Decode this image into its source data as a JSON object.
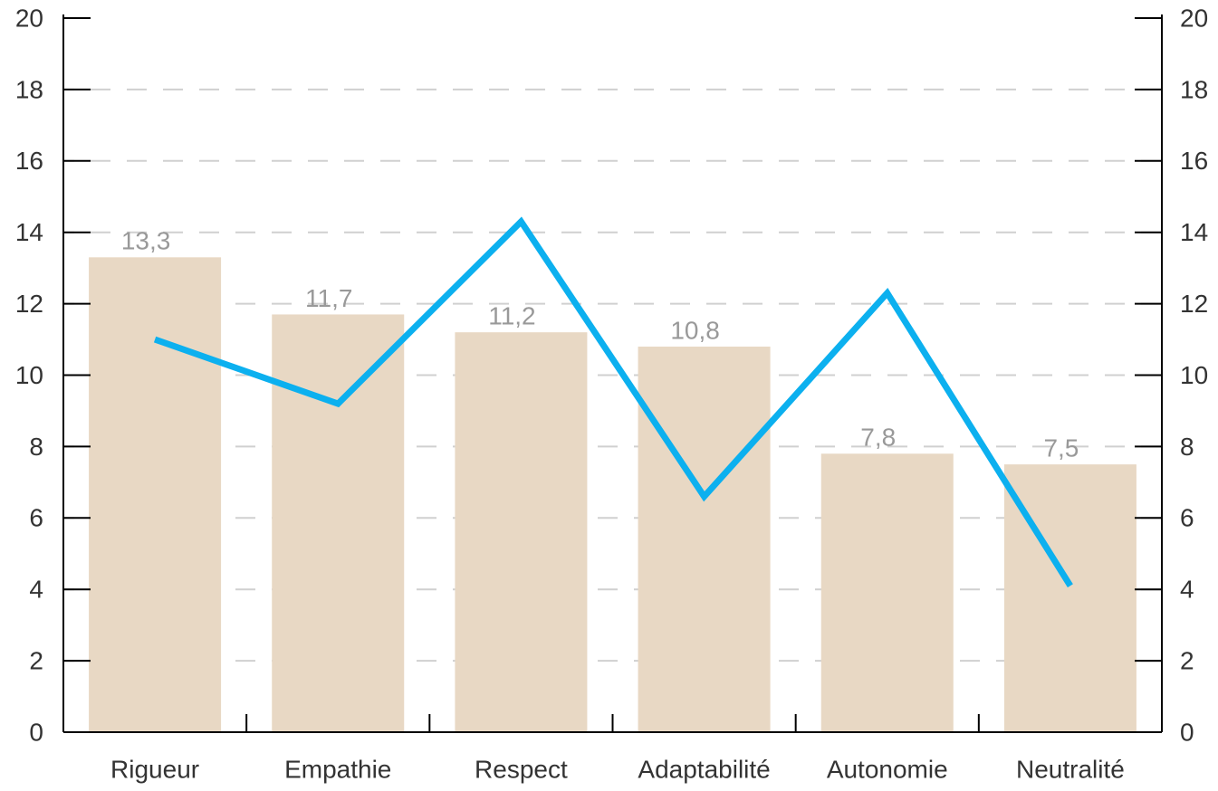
{
  "chart_data": {
    "type": "bar_line",
    "categories": [
      "Rigueur",
      "Empathie",
      "Respect",
      "Adaptabilité",
      "Autonomie",
      "Neutralité"
    ],
    "series": [
      {
        "type": "bar",
        "color": "#e8d8c4",
        "values": [
          13.3,
          11.7,
          11.2,
          10.8,
          7.8,
          7.5
        ],
        "value_labels": [
          "13,3",
          "11,7",
          "11,2",
          "10,8",
          "7,8",
          "7,5"
        ]
      },
      {
        "type": "line",
        "axis": "y2",
        "color": "#0cb0ef",
        "values": [
          11.0,
          9.2,
          14.3,
          6.6,
          12.3,
          4.1
        ]
      }
    ],
    "ylim": [
      0,
      20
    ],
    "yticks": [
      0,
      2,
      4,
      6,
      8,
      10,
      12,
      14,
      16,
      18,
      20
    ],
    "y2lim": [
      0,
      20
    ],
    "y2ticks": [
      0,
      2,
      4,
      6,
      8,
      10,
      12,
      14,
      16,
      18,
      20
    ],
    "grid": true
  }
}
